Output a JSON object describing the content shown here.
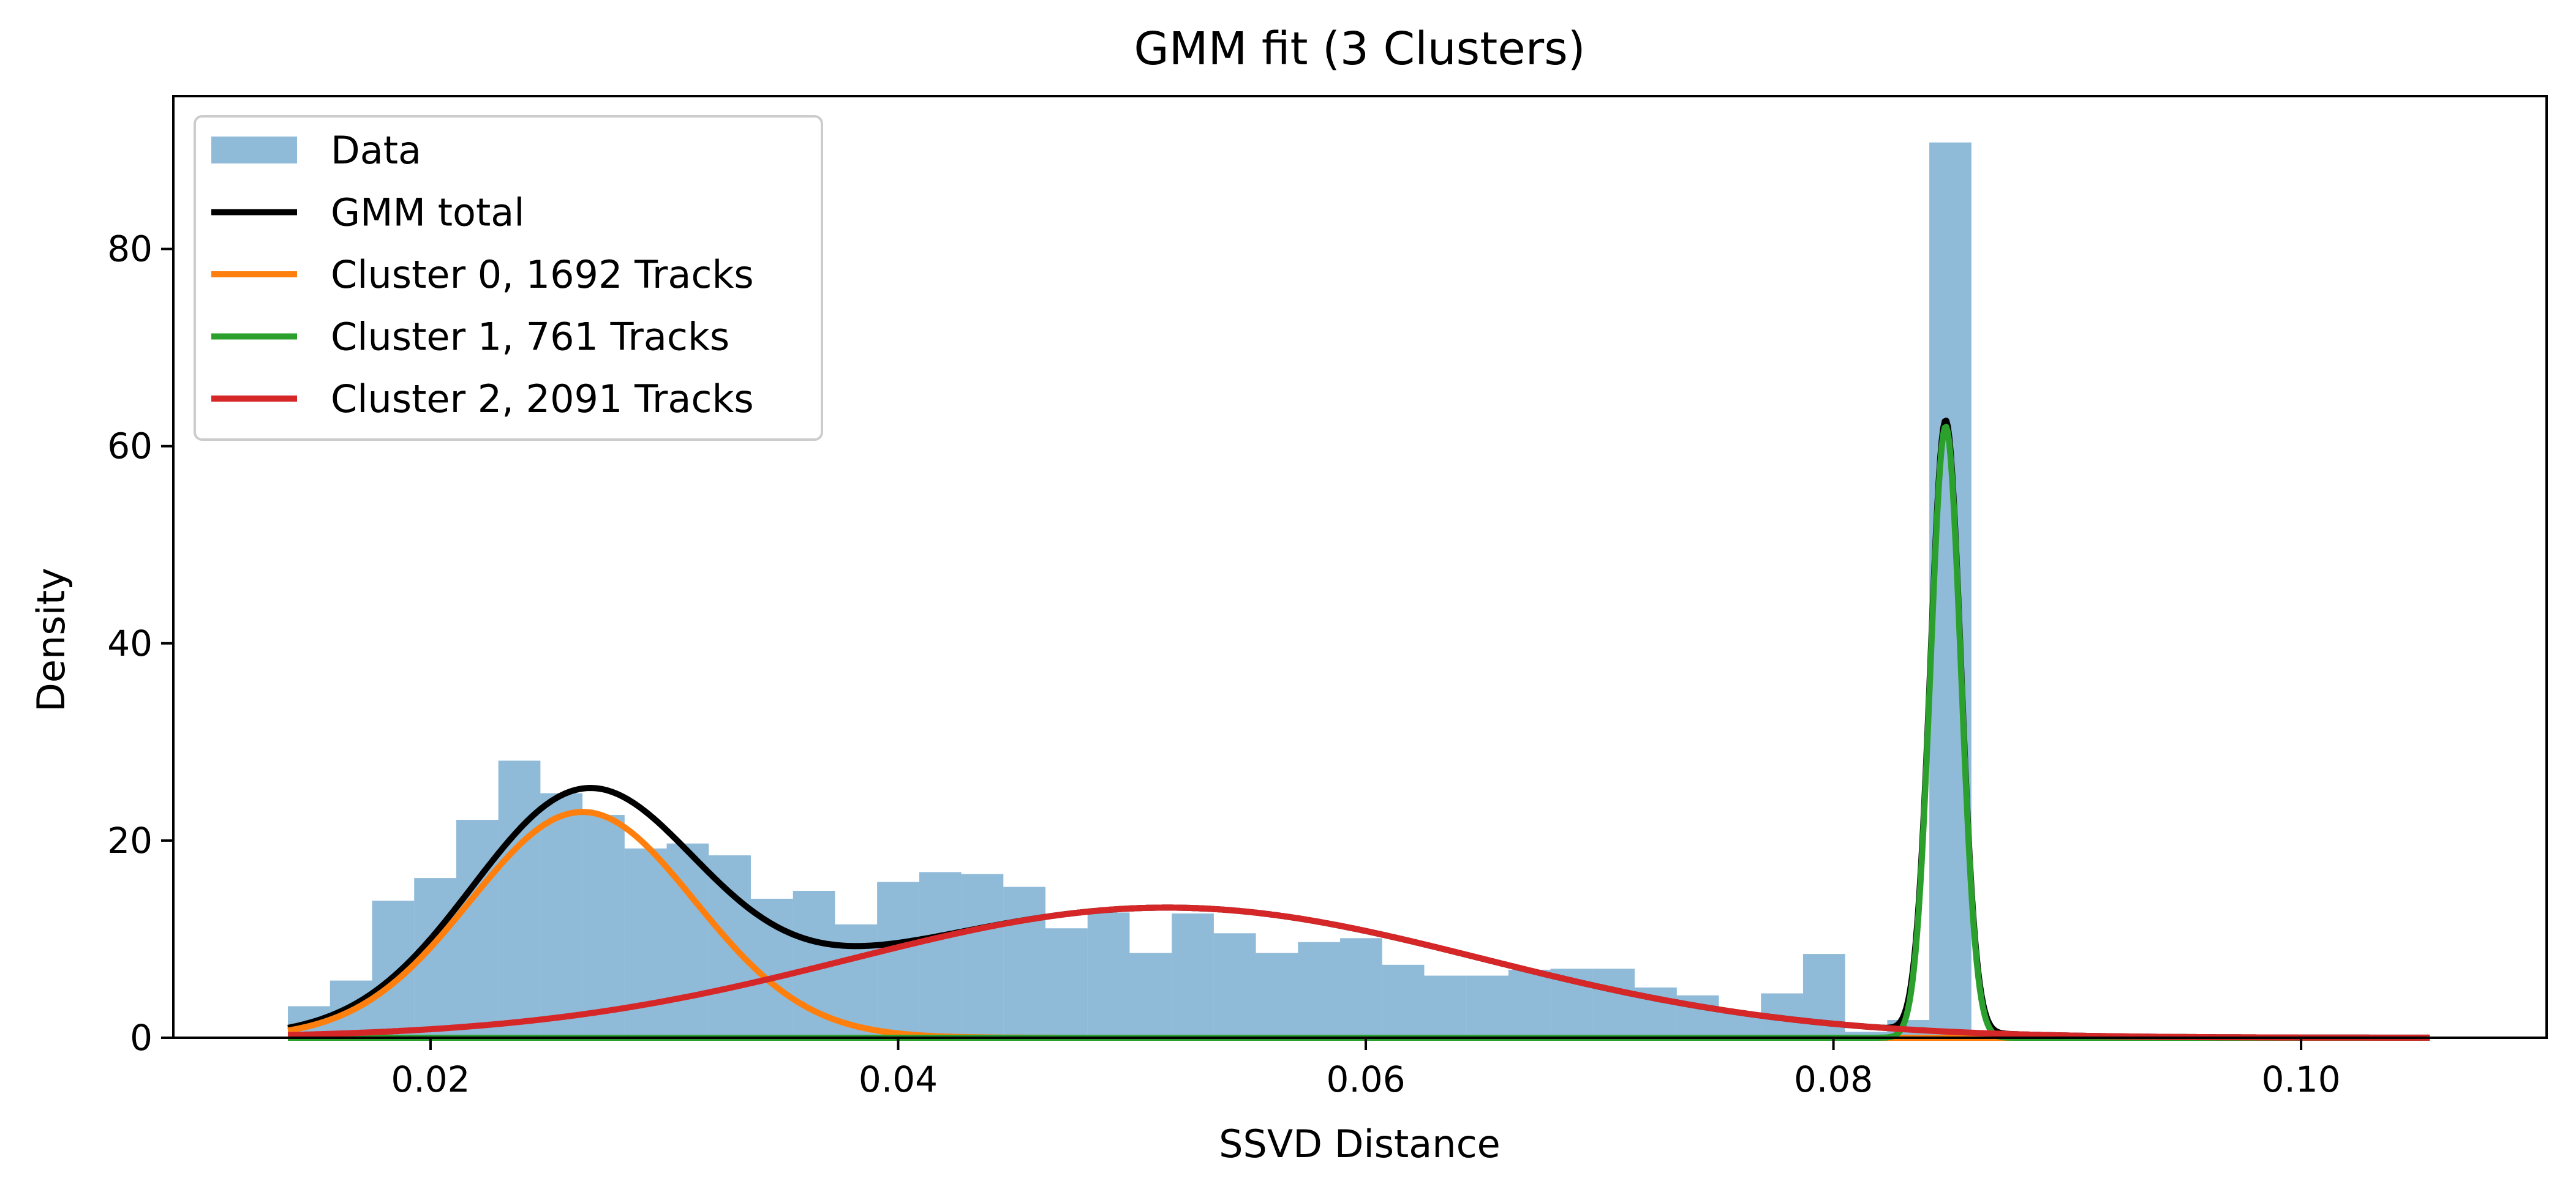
{
  "chart_data": {
    "type": "bar",
    "title": "GMM fit (3 Clusters)",
    "xlabel": "SSVD Distance",
    "ylabel": "Density",
    "xlim": [
      0.009,
      0.1105
    ],
    "ylim": [
      0,
      95.5
    ],
    "xticks": [
      0.02,
      0.04,
      0.06,
      0.08,
      0.1
    ],
    "xtick_labels": [
      "0.02",
      "0.04",
      "0.06",
      "0.08",
      "0.10"
    ],
    "yticks": [
      0,
      20,
      40,
      60,
      80
    ],
    "ytick_labels": [
      "0",
      "20",
      "40",
      "60",
      "80"
    ],
    "grid": false,
    "legend_position": "top-left",
    "histogram": {
      "name": "Data",
      "color": "#1f77b4",
      "alpha": 0.5,
      "bin_width": 0.0018,
      "bin_starts": [
        0.0139,
        0.0157,
        0.0175,
        0.0193,
        0.0211,
        0.0229,
        0.0247,
        0.0265,
        0.0283,
        0.0301,
        0.0319,
        0.0337,
        0.0355,
        0.0373,
        0.0391,
        0.0409,
        0.0427,
        0.0445,
        0.0463,
        0.0481,
        0.0499,
        0.0517,
        0.0535,
        0.0553,
        0.0571,
        0.0589,
        0.0607,
        0.0625,
        0.0643,
        0.0661,
        0.0679,
        0.0697,
        0.0715,
        0.0733,
        0.0751,
        0.0769,
        0.0787,
        0.0805,
        0.0823,
        0.0841
      ],
      "values": [
        3.2,
        5.8,
        13.9,
        16.2,
        22.1,
        28.1,
        24.8,
        22.6,
        19.2,
        19.7,
        18.5,
        14.1,
        14.9,
        11.5,
        15.8,
        16.8,
        16.6,
        15.3,
        11.1,
        12.7,
        8.6,
        12.6,
        10.6,
        8.6,
        9.7,
        10.1,
        7.4,
        6.3,
        6.3,
        6.9,
        7.0,
        7.0,
        5.1,
        4.3,
        2.5,
        4.5,
        8.5,
        0.6,
        1.8,
        90.8
      ]
    },
    "gmm_components": [
      {
        "name": "Cluster 0, 1692 Tracks",
        "color": "#ff7f0e",
        "mean": 0.0265,
        "sd": 0.0048,
        "peak": 22.9
      },
      {
        "name": "Cluster 1, 761 Tracks",
        "color": "#2ca02c",
        "mean": 0.0848,
        "sd": 0.00065,
        "peak": 62.0
      },
      {
        "name": "Cluster 2, 2091 Tracks",
        "color": "#d62728",
        "mean": 0.0515,
        "sd": 0.0135,
        "peak": 13.2
      }
    ],
    "total": {
      "name": "GMM total",
      "color": "#000000"
    },
    "curve_x_range": [
      0.0139,
      0.1055
    ]
  }
}
